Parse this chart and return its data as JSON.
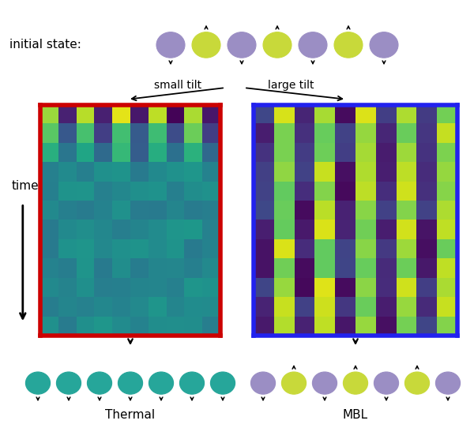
{
  "initial_state_label": "initial state:",
  "small_tilt_label": "small tilt",
  "large_tilt_label": "large tilt",
  "time_label": "time",
  "thermal_label": "Thermal",
  "mbl_label": "MBL",
  "purple_color": "#9b8ec4",
  "green_color": "#c8d93a",
  "teal_color": "#26a69a",
  "red_border": "#cc0000",
  "blue_border": "#2222ee",
  "background": "#ffffff",
  "colormap": "viridis",
  "n_rows": 12,
  "n_cols": 10,
  "fig_width": 6.0,
  "fig_height": 5.42
}
